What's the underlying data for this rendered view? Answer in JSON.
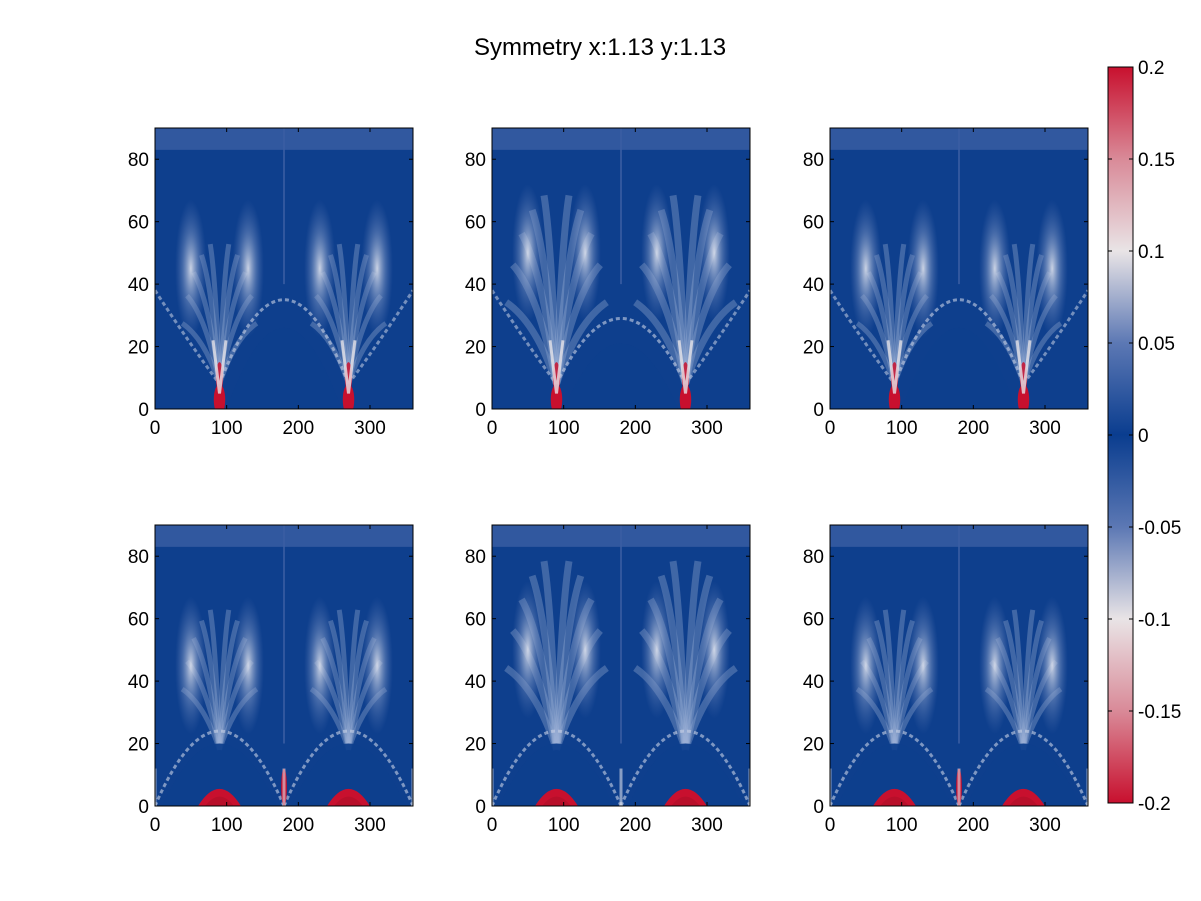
{
  "figure": {
    "title": "Symmetry x:1.13 y:1.13"
  },
  "colors": {
    "colormap": [
      "#c8102e",
      "#d98a98",
      "#e9e4e6",
      "#5c78b4",
      "#0a3d8f",
      "#5c78b4",
      "#e9e4e6",
      "#d98a98",
      "#c8102e"
    ],
    "background": "#0e3f8d",
    "highlight": "#c8102e",
    "axes_line": "#000000"
  },
  "chart_data": [
    {
      "type": "heatmap",
      "panel": "top-left",
      "xlim": [
        0,
        360
      ],
      "ylim": [
        0,
        90
      ],
      "xticks": [
        "0",
        "100",
        "200",
        "300"
      ],
      "yticks": [
        "0",
        "20",
        "40",
        "60",
        "80"
      ],
      "variant": "arch-low",
      "red_bumps": [],
      "center_red": false
    },
    {
      "type": "heatmap",
      "panel": "top-middle",
      "xlim": [
        0,
        360
      ],
      "ylim": [
        0,
        90
      ],
      "xticks": [
        "0",
        "100",
        "200",
        "300"
      ],
      "yticks": [
        "0",
        "20",
        "40",
        "60",
        "80"
      ],
      "variant": "fan-high",
      "red_bumps": [],
      "center_red": false
    },
    {
      "type": "heatmap",
      "panel": "top-right",
      "xlim": [
        0,
        360
      ],
      "ylim": [
        0,
        90
      ],
      "xticks": [
        "0",
        "100",
        "200",
        "300"
      ],
      "yticks": [
        "0",
        "20",
        "40",
        "60",
        "80"
      ],
      "variant": "arch-mid",
      "red_bumps": [],
      "center_red": false
    },
    {
      "type": "heatmap",
      "panel": "bottom-left",
      "xlim": [
        0,
        360
      ],
      "ylim": [
        0,
        90
      ],
      "xticks": [
        "0",
        "100",
        "200",
        "300"
      ],
      "yticks": [
        "0",
        "20",
        "40",
        "60",
        "80"
      ],
      "variant": "bottom-arcs",
      "red_bumps": [
        90,
        270
      ],
      "center_red": true
    },
    {
      "type": "heatmap",
      "panel": "bottom-middle",
      "xlim": [
        0,
        360
      ],
      "ylim": [
        0,
        90
      ],
      "xticks": [
        "0",
        "100",
        "200",
        "300"
      ],
      "yticks": [
        "0",
        "20",
        "40",
        "60",
        "80"
      ],
      "variant": "bottom-fan",
      "red_bumps": [
        90,
        270
      ],
      "center_red": false
    },
    {
      "type": "heatmap",
      "panel": "bottom-right",
      "xlim": [
        0,
        360
      ],
      "ylim": [
        0,
        90
      ],
      "xticks": [
        "0",
        "100",
        "200",
        "300"
      ],
      "yticks": [
        "0",
        "20",
        "40",
        "60",
        "80"
      ],
      "variant": "bottom-mixed",
      "red_bumps": [
        90,
        270
      ],
      "center_red": true
    }
  ],
  "colorbar": {
    "ticks": [
      "0.2",
      "0.15",
      "0.1",
      "0.05",
      "0",
      "-0.05",
      "-0.1",
      "-0.15",
      "-0.2"
    ],
    "range": [
      -0.2,
      0.2
    ]
  }
}
